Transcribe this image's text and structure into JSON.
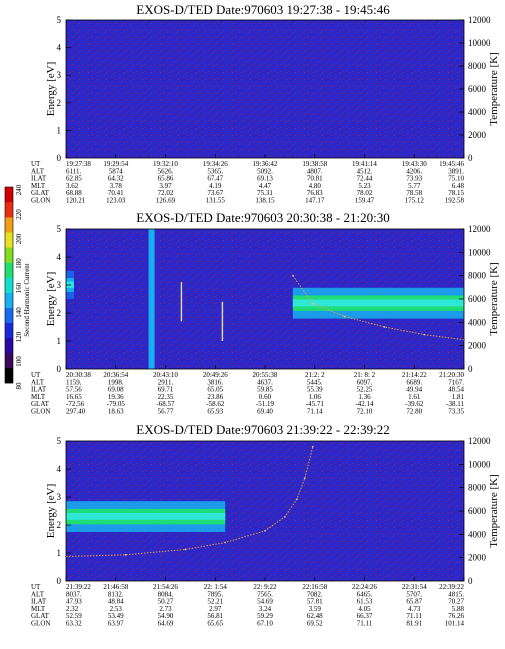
{
  "panels": [
    {
      "title": "EXOS-D/TED   Date:970603   19:27:38 - 19:45:46",
      "ylabel_left": "Energy [eV]",
      "ylabel_right": "Temperature [K]",
      "row_labels": [
        "UT",
        "ALT",
        "ILAT",
        "MLT",
        "GLAT",
        "GLON"
      ],
      "columns": [
        [
          "19:27:38",
          "6111.",
          "62.85",
          "3.62",
          "68.88",
          "120.21"
        ],
        [
          "19:29:54",
          "5874",
          "64.32",
          "3.78",
          "70.41",
          "123.03"
        ],
        [
          "19:32:10",
          "5626.",
          "65.86",
          "3.97",
          "72.02",
          "126.69"
        ],
        [
          "19:34:26",
          "5365.",
          "67.47",
          "4.19",
          "73.67",
          "131.55"
        ],
        [
          "19:36:42",
          "5092.",
          "69.13",
          "4.47",
          "75.31",
          "138.15"
        ],
        [
          "19:38:58",
          "4807.",
          "70.81",
          "4.80",
          "76.83",
          "147.17"
        ],
        [
          "19:41:14",
          "4512.",
          "72.44",
          "5.23",
          "78.02",
          "159.47"
        ],
        [
          "19:43:30",
          "4206.",
          "73.93",
          "5.77",
          "78.58",
          "175.12"
        ],
        [
          "19:45:46",
          "3891.",
          "75.10",
          "6.48",
          "78.15",
          "192.58"
        ]
      ]
    },
    {
      "title": "EXOS-D/TED   Date:970603   20:30:38 - 21:20:30",
      "ylabel_left": "Energy [eV]",
      "ylabel_right": "Temperature [K]",
      "row_labels": [
        "UT",
        "ALT",
        "ILAT",
        "MLT",
        "GLAT",
        "GLON"
      ],
      "columns": [
        [
          "20:30:38",
          "1159.",
          "57.56",
          "16.65",
          "-72.56",
          "297.40"
        ],
        [
          "20:36:54",
          "1998.",
          "69.08",
          "19.36",
          "-79.05",
          "18.63"
        ],
        [
          "20:43:10",
          "2911.",
          "69.71",
          "22.35",
          "-68.57",
          "56.77"
        ],
        [
          "20:49:26",
          "3816.",
          "65.05",
          "23.86",
          "-58.62",
          "65.93"
        ],
        [
          "20:55:38",
          "4637.",
          "59.85",
          "0.60",
          "-51.19",
          "69.40"
        ],
        [
          "21:2: 2",
          "5445.",
          "55.39",
          "1.06",
          "-45.71",
          "71.14"
        ],
        [
          "21: 8: 2",
          "6097.",
          "52.25",
          "1.36",
          "-42.14",
          "72.10"
        ],
        [
          "21:14:22",
          "6689.",
          "49.94",
          "1.61",
          "-39.62",
          "72.80"
        ],
        [
          "21:20:30",
          "7167.",
          "48.54",
          "1.81",
          "-38.11",
          "73.35"
        ]
      ]
    },
    {
      "title": "EXOS-D/TED   Date:970603   21:39:22 - 22:39:22",
      "ylabel_left": "Energy [eV]",
      "ylabel_right": "Temperature [K]",
      "row_labels": [
        "UT",
        "ALT",
        "ILAT",
        "MLT",
        "GLAT",
        "GLON"
      ],
      "columns": [
        [
          "21:39:22",
          "8037.",
          "47.93",
          "2.32",
          "52.59",
          "63.32"
        ],
        [
          "21:46:58",
          "8132.",
          "48.84",
          "2.53",
          "53.49",
          "63.97"
        ],
        [
          "21:54:26",
          "8084.",
          "50.27",
          "2.73",
          "54.90",
          "64.69"
        ],
        [
          "22: 1:54",
          "7895.",
          "52.21",
          "2.97",
          "56.81",
          "65.65"
        ],
        [
          "22: 9:22",
          "7565.",
          "54.69",
          "3.24",
          "59.29",
          "67.10"
        ],
        [
          "22:16:58",
          "7082.",
          "57.81",
          "3.59",
          "62.48",
          "69.52"
        ],
        [
          "22:24:26",
          "6465.",
          "61.53",
          "4.05",
          "66.37",
          "71.11"
        ],
        [
          "22:31:54",
          "5707.",
          "65.87",
          "4.73",
          "71.11",
          "81.91"
        ],
        [
          "22:39:22",
          "4815.",
          "70.27",
          "5.88",
          "76.26",
          "101.14"
        ]
      ]
    }
  ],
  "colorbar": {
    "label": "Second Harmonic Current",
    "ticks": [
      "80",
      "100",
      "120",
      "140",
      "160",
      "180",
      "200",
      "220",
      "240"
    ],
    "range": [
      80,
      240
    ],
    "colors": [
      "#000000",
      "#3a0a5a",
      "#2a0aa0",
      "#1a2ad8",
      "#1a6af0",
      "#18b0f0",
      "#10e0d0",
      "#20e070",
      "#80e020",
      "#e8e020",
      "#f0a010",
      "#e83010",
      "#d00000"
    ]
  },
  "chart_data": [
    {
      "type": "heatmap",
      "title": "EXOS-D/TED   Date:970603   19:27:38 - 19:45:46",
      "ylabel": "Energy [eV]",
      "y2label": "Temperature [K]",
      "ylim": [
        0,
        5
      ],
      "y2lim": [
        0,
        12000
      ],
      "yticks": [
        "0",
        "1",
        "2",
        "3",
        "4",
        "5"
      ],
      "y2ticks": [
        "0",
        "2000",
        "4000",
        "6000",
        "8000",
        "10000",
        "12000"
      ],
      "x": [
        "19:27:38",
        "19:29:54",
        "19:32:10",
        "19:34:26",
        "19:36:42",
        "19:38:58",
        "19:41:14",
        "19:43:30",
        "19:45:46"
      ],
      "background_level": 110,
      "bands": [],
      "temperature_trace": []
    },
    {
      "type": "heatmap",
      "title": "EXOS-D/TED   Date:970603   20:30:38 - 21:20:30",
      "ylabel": "Energy [eV]",
      "y2label": "Temperature [K]",
      "ylim": [
        0,
        5
      ],
      "y2lim": [
        0,
        12000
      ],
      "yticks": [
        "0",
        "1",
        "2",
        "3",
        "4",
        "5"
      ],
      "y2ticks": [
        "0",
        "2000",
        "4000",
        "6000",
        "8000",
        "10000",
        "12000"
      ],
      "x": [
        "20:30:38",
        "20:36:54",
        "20:43:10",
        "20:49:26",
        "20:55:38",
        "21:2: 2",
        "21: 8: 2",
        "21:14:22",
        "21:20:30"
      ],
      "background_level": 110,
      "bands": [
        {
          "x_from": 0.0,
          "x_to": 0.02,
          "e_center": 3.0,
          "e_halfwidth": 0.5,
          "level": 150
        },
        {
          "x_from": 0.57,
          "x_to": 1.0,
          "e_center": 2.35,
          "e_halfwidth": 0.55,
          "level": 170
        }
      ],
      "vertical_features": [
        {
          "x": 0.215,
          "e_from": 0,
          "e_to": 5,
          "level": 150
        },
        {
          "x": 0.29,
          "e_from": 1.7,
          "e_to": 3.1,
          "level": 200
        },
        {
          "x": 0.393,
          "e_from": 1.0,
          "e_to": 2.4,
          "level": 200
        }
      ],
      "temperature_trace": [
        {
          "x": 0.57,
          "T": 8000
        },
        {
          "x": 0.62,
          "T": 5600
        },
        {
          "x": 0.7,
          "T": 4500
        },
        {
          "x": 0.8,
          "T": 3600
        },
        {
          "x": 0.9,
          "T": 2950
        },
        {
          "x": 1.0,
          "T": 2500
        }
      ]
    },
    {
      "type": "heatmap",
      "title": "EXOS-D/TED   Date:970603   21:39:22 - 22:39:22",
      "ylabel": "Energy [eV]",
      "y2label": "Temperature [K]",
      "ylim": [
        0,
        5
      ],
      "y2lim": [
        0,
        12000
      ],
      "yticks": [
        "0",
        "1",
        "2",
        "3",
        "4",
        "5"
      ],
      "y2ticks": [
        "0",
        "2000",
        "4000",
        "6000",
        "8000",
        "10000",
        "12000"
      ],
      "x": [
        "21:39:22",
        "21:46:58",
        "21:54:26",
        "22: 1:54",
        "22: 9:22",
        "22:16:58",
        "22:24:26",
        "22:31:54",
        "22:39:22"
      ],
      "background_level": 110,
      "bands": [
        {
          "x_from": 0.0,
          "x_to": 0.4,
          "e_center": 2.3,
          "e_halfwidth": 0.55,
          "level": 170
        }
      ],
      "temperature_trace": [
        {
          "x": 0.0,
          "T": 2100
        },
        {
          "x": 0.15,
          "T": 2250
        },
        {
          "x": 0.3,
          "T": 2700
        },
        {
          "x": 0.4,
          "T": 3300
        },
        {
          "x": 0.5,
          "T": 4300
        },
        {
          "x": 0.55,
          "T": 5500
        },
        {
          "x": 0.58,
          "T": 7000
        },
        {
          "x": 0.6,
          "T": 8800
        },
        {
          "x": 0.62,
          "T": 11500
        }
      ]
    }
  ]
}
